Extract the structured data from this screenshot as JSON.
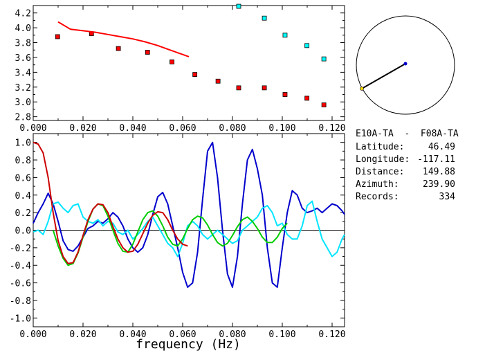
{
  "info": {
    "station_pair": "E10A-TA  -  F08A-TA",
    "latitude_label": "Latitude:",
    "latitude": "46.49",
    "longitude_label": "Longitude:",
    "longitude": "-117.11",
    "distance_label": "Distance:",
    "distance": "149.88",
    "azimuth_label": "Azimuth:",
    "azimuth": "239.90",
    "records_label": "Records:",
    "records": "334"
  },
  "chart_data": [
    {
      "type": "scatter",
      "title": "",
      "xlabel": "",
      "ylabel": "",
      "xlim": [
        0.0,
        0.125
      ],
      "ylim": [
        2.75,
        4.3
      ],
      "x_ticks": [
        "0.000",
        "0.020",
        "0.040",
        "0.060",
        "0.080",
        "0.100",
        "0.120"
      ],
      "y_ticks": [
        "2.8",
        "3.0",
        "3.2",
        "3.4",
        "3.6",
        "3.8",
        "4.0",
        "4.2"
      ],
      "grid": false,
      "series": [
        {
          "color": "#ff0000",
          "marker": "square",
          "x": [
            0.0098,
            0.0234,
            0.0342,
            0.0459,
            0.0557,
            0.0649,
            0.0742,
            0.0825,
            0.0928,
            0.1011,
            0.1099,
            0.1167
          ],
          "y": [
            3.88,
            3.92,
            3.72,
            3.67,
            3.54,
            3.37,
            3.28,
            3.19,
            3.19,
            3.1,
            3.05,
            2.96
          ]
        },
        {
          "color": "#00ffff",
          "marker": "square",
          "x": [
            0.0825,
            0.0928,
            0.1011,
            0.1099,
            0.1167
          ],
          "y": [
            4.29,
            4.13,
            3.9,
            3.76,
            3.58
          ]
        },
        {
          "color": "#ff0000",
          "marker": "line",
          "x": [
            0.01,
            0.015,
            0.02,
            0.025,
            0.03,
            0.035,
            0.04,
            0.045,
            0.05,
            0.055,
            0.06,
            0.0625
          ],
          "y": [
            4.08,
            3.98,
            3.96,
            3.94,
            3.91,
            3.88,
            3.85,
            3.81,
            3.76,
            3.7,
            3.64,
            3.61
          ]
        }
      ]
    },
    {
      "type": "line",
      "title": "",
      "xlabel": "frequency (Hz)",
      "ylabel": "",
      "xlim": [
        0.0,
        0.125
      ],
      "ylim": [
        -1.1,
        1.1
      ],
      "x_ticks": [
        "0.000",
        "0.020",
        "0.040",
        "0.060",
        "0.080",
        "0.100",
        "0.120"
      ],
      "y_ticks": [
        "1.0",
        "0.8",
        "0.6",
        "0.4",
        "0.2",
        "0.0",
        "-0.2",
        "-0.4",
        "-0.6",
        "-0.8",
        "-1.0"
      ],
      "zero_line": true,
      "grid": false,
      "series": [
        {
          "color": "#0000cc",
          "x": [
            0,
            0.002,
            0.004,
            0.006,
            0.008,
            0.01,
            0.012,
            0.014,
            0.016,
            0.018,
            0.02,
            0.022,
            0.024,
            0.026,
            0.028,
            0.03,
            0.032,
            0.034,
            0.036,
            0.038,
            0.04,
            0.042,
            0.044,
            0.046,
            0.048,
            0.05,
            0.052,
            0.054,
            0.056,
            0.058,
            0.06,
            0.062,
            0.064,
            0.066,
            0.068,
            0.07,
            0.072,
            0.074,
            0.076,
            0.078,
            0.08,
            0.082,
            0.084,
            0.086,
            0.088,
            0.09,
            0.092,
            0.094,
            0.096,
            0.098,
            0.1,
            0.102,
            0.104,
            0.106,
            0.108,
            0.11,
            0.112,
            0.114,
            0.116,
            0.118,
            0.12,
            0.122,
            0.124,
            0.125
          ],
          "y": [
            0.08,
            0.2,
            0.3,
            0.42,
            0.3,
            0.1,
            -0.12,
            -0.22,
            -0.24,
            -0.18,
            -0.08,
            0.02,
            0.05,
            0.1,
            0.08,
            0.13,
            0.2,
            0.15,
            0.05,
            -0.1,
            -0.2,
            -0.25,
            -0.2,
            -0.05,
            0.18,
            0.38,
            0.43,
            0.3,
            0.05,
            -0.2,
            -0.48,
            -0.65,
            -0.6,
            -0.25,
            0.35,
            0.9,
            1.0,
            0.6,
            0.0,
            -0.5,
            -0.65,
            -0.3,
            0.3,
            0.8,
            0.92,
            0.7,
            0.4,
            -0.2,
            -0.6,
            -0.65,
            -0.2,
            0.2,
            0.45,
            0.4,
            0.25,
            0.2,
            0.22,
            0.25,
            0.2,
            0.25,
            0.3,
            0.28,
            0.22,
            0.18
          ]
        },
        {
          "color": "#00e5ff",
          "x": [
            0,
            0.002,
            0.004,
            0.006,
            0.008,
            0.01,
            0.012,
            0.014,
            0.016,
            0.018,
            0.02,
            0.022,
            0.024,
            0.026,
            0.028,
            0.03,
            0.032,
            0.034,
            0.036,
            0.038,
            0.04,
            0.042,
            0.044,
            0.046,
            0.048,
            0.05,
            0.052,
            0.054,
            0.056,
            0.058,
            0.06,
            0.062,
            0.064,
            0.066,
            0.068,
            0.07,
            0.072,
            0.074,
            0.076,
            0.078,
            0.08,
            0.082,
            0.084,
            0.086,
            0.088,
            0.09,
            0.092,
            0.094,
            0.096,
            0.098,
            0.1,
            0.102,
            0.104,
            0.106,
            0.108,
            0.11,
            0.112,
            0.114,
            0.116,
            0.118,
            0.12,
            0.122,
            0.124,
            0.125
          ],
          "y": [
            -0.02,
            0.0,
            -0.05,
            0.1,
            0.3,
            0.32,
            0.25,
            0.2,
            0.28,
            0.3,
            0.15,
            0.1,
            0.08,
            0.12,
            0.05,
            0.1,
            0.08,
            -0.02,
            -0.05,
            0.0,
            -0.1,
            -0.05,
            0.02,
            0.1,
            0.15,
            0.05,
            -0.05,
            -0.15,
            -0.2,
            -0.3,
            -0.15,
            0.05,
            0.1,
            0.05,
            -0.05,
            -0.1,
            -0.05,
            0.0,
            -0.05,
            -0.1,
            -0.15,
            -0.12,
            0.0,
            0.05,
            0.1,
            0.15,
            0.25,
            0.28,
            0.2,
            0.05,
            0.08,
            -0.05,
            -0.1,
            -0.1,
            0.05,
            0.28,
            0.33,
            0.1,
            -0.1,
            -0.2,
            -0.3,
            -0.25,
            -0.1,
            -0.05
          ]
        },
        {
          "color": "#00cc00",
          "x": [
            0.008,
            0.01,
            0.012,
            0.014,
            0.016,
            0.018,
            0.02,
            0.022,
            0.024,
            0.026,
            0.028,
            0.03,
            0.032,
            0.034,
            0.036,
            0.038,
            0.04,
            0.042,
            0.044,
            0.046,
            0.048,
            0.05,
            0.052,
            0.054,
            0.056,
            0.058,
            0.06,
            0.062,
            0.064,
            0.066,
            0.068,
            0.07,
            0.072,
            0.074,
            0.076,
            0.078,
            0.08,
            0.082,
            0.084,
            0.086,
            0.088,
            0.09,
            0.092,
            0.094,
            0.096,
            0.098,
            0.1,
            0.102
          ],
          "y": [
            0.0,
            -0.18,
            -0.32,
            -0.4,
            -0.38,
            -0.26,
            -0.08,
            0.1,
            0.24,
            0.3,
            0.28,
            0.16,
            0.0,
            -0.15,
            -0.24,
            -0.25,
            -0.16,
            -0.02,
            0.12,
            0.2,
            0.22,
            0.16,
            0.05,
            -0.08,
            -0.16,
            -0.18,
            -0.1,
            0.02,
            0.12,
            0.16,
            0.14,
            0.06,
            -0.05,
            -0.14,
            -0.18,
            -0.15,
            -0.06,
            0.04,
            0.12,
            0.15,
            0.1,
            0.02,
            -0.08,
            -0.14,
            -0.14,
            -0.08,
            0.02,
            0.08
          ]
        },
        {
          "color": "#cc0000",
          "x": [
            0.0,
            0.002,
            0.004,
            0.006,
            0.008,
            0.01,
            0.012,
            0.014,
            0.016,
            0.018,
            0.02,
            0.022,
            0.024,
            0.026,
            0.028,
            0.03,
            0.032,
            0.034,
            0.036,
            0.038,
            0.04,
            0.042,
            0.044,
            0.046,
            0.048,
            0.05,
            0.052,
            0.054,
            0.056,
            0.058,
            0.06,
            0.062
          ],
          "y": [
            1.0,
            0.98,
            0.88,
            0.6,
            0.2,
            -0.12,
            -0.3,
            -0.38,
            -0.37,
            -0.25,
            -0.06,
            0.12,
            0.24,
            0.3,
            0.29,
            0.2,
            0.04,
            -0.1,
            -0.2,
            -0.25,
            -0.24,
            -0.16,
            -0.04,
            0.08,
            0.17,
            0.21,
            0.2,
            0.12,
            0.0,
            -0.1,
            -0.16,
            -0.18
          ]
        }
      ]
    }
  ],
  "map": {
    "line_color": "#000000",
    "station_a_color": "#0000cc",
    "station_b_color": "#ffd700"
  }
}
